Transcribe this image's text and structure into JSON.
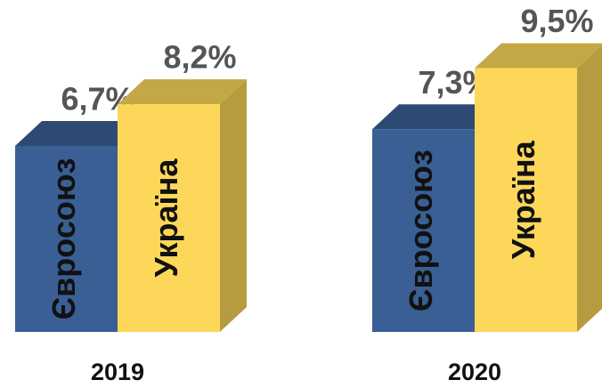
{
  "chart_data": {
    "type": "bar3d",
    "categories": [
      "2019",
      "2020"
    ],
    "series": [
      {
        "name": "Євросоюз",
        "color": "#3a5f95",
        "values": [
          6.7,
          7.3
        ],
        "value_labels": [
          "6,7%",
          "7,3%"
        ]
      },
      {
        "name": "Україна",
        "color": "#fdd75a",
        "values": [
          8.2,
          9.5
        ],
        "value_labels": [
          "8,2%",
          "9,5%"
        ]
      }
    ]
  }
}
